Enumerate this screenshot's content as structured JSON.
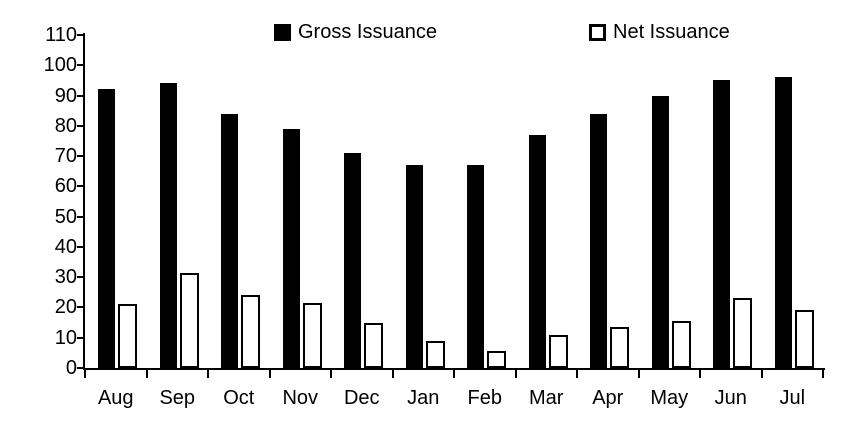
{
  "chart_data": {
    "type": "bar",
    "title": "",
    "xlabel": "",
    "ylabel": "",
    "categories": [
      "Aug",
      "Sep",
      "Oct",
      "Nov",
      "Dec",
      "Jan",
      "Feb",
      "Mar",
      "Apr",
      "May",
      "Jun",
      "Jul"
    ],
    "series": [
      {
        "name": "Gross Issuance",
        "style": "solid",
        "color": "#000000",
        "values": [
          92,
          94,
          84,
          79,
          71,
          67,
          67,
          77,
          84,
          90,
          95,
          96
        ]
      },
      {
        "name": "Net Issuance",
        "style": "outline",
        "fill_color": "#ffffff",
        "border_color": "#000000",
        "values": [
          21,
          31.5,
          24,
          21.5,
          15,
          9,
          5.5,
          11,
          13.5,
          15.5,
          23,
          19
        ]
      }
    ],
    "ylim": [
      0,
      110
    ],
    "yticks": [
      0,
      10,
      20,
      30,
      40,
      50,
      60,
      70,
      80,
      90,
      100,
      110
    ],
    "legend_position": "top",
    "grid": false,
    "colors": {
      "axis": "#000000",
      "background": "#ffffff"
    }
  }
}
